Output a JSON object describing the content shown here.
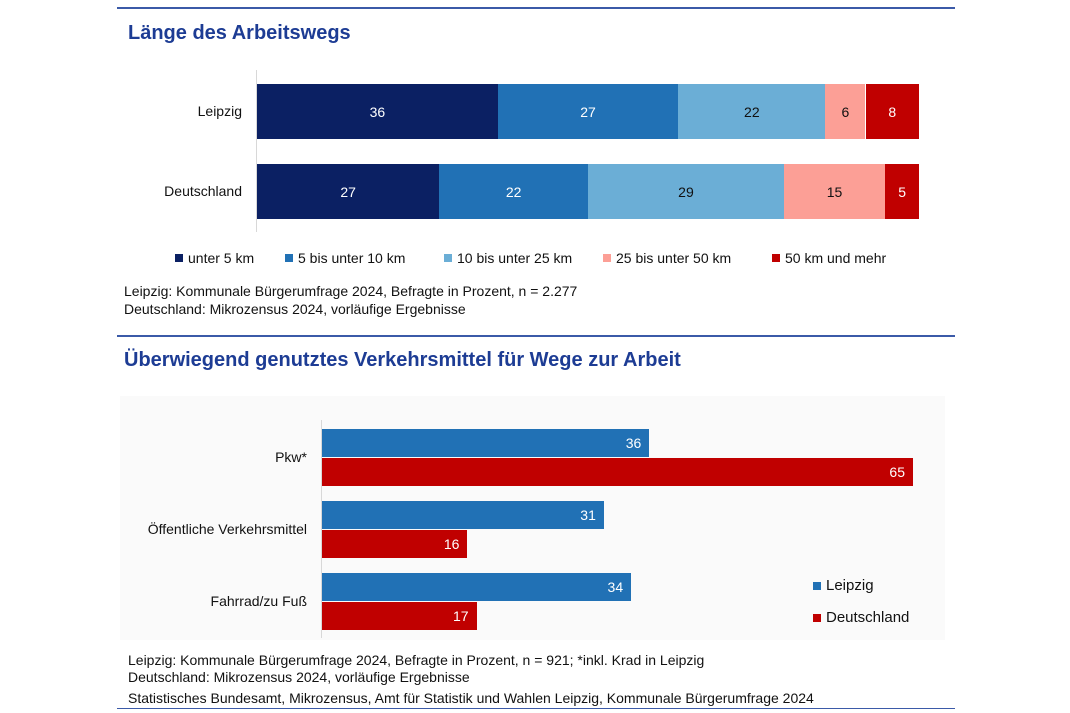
{
  "colors": {
    "title": "#1d3c94",
    "c1": "#0b2063",
    "c2": "#2171b5",
    "c3": "#6baed6",
    "c4": "#fc9f96",
    "c5": "#c00000"
  },
  "chart_data": [
    {
      "type": "bar",
      "orientation": "horizontal",
      "stacked": true,
      "title": "Länge des Arbeitswegs",
      "categories": [
        "Leipzig",
        "Deutschland"
      ],
      "series": [
        {
          "name": "unter 5 km",
          "color": "#0b2063",
          "values": [
            36,
            27
          ]
        },
        {
          "name": "5 bis unter 10 km",
          "color": "#2171b5",
          "values": [
            27,
            22
          ]
        },
        {
          "name": "10 bis unter 25 km",
          "color": "#6baed6",
          "values": [
            22,
            29
          ]
        },
        {
          "name": "25 bis unter 50 km",
          "color": "#fc9f96",
          "values": [
            6,
            15
          ]
        },
        {
          "name": "50 km und mehr",
          "color": "#c00000",
          "values": [
            8,
            5
          ]
        }
      ],
      "legend": "bottom",
      "notes": [
        "Leipzig: Kommunale Bürgerumfrage 2024, Befragte in Prozent, n = 2.277",
        "Deutschland: Mikrozensus 2024, vorläufige Ergebnisse"
      ]
    },
    {
      "type": "bar",
      "orientation": "horizontal",
      "title": "Überwiegend genutztes Verkehrsmittel für Wege zur Arbeit",
      "categories": [
        "Pkw*",
        "Öffentliche Verkehrsmittel",
        "Fahrrad/zu Fuß"
      ],
      "series": [
        {
          "name": "Leipzig",
          "color": "#2171b5",
          "values": [
            36,
            31,
            34
          ]
        },
        {
          "name": "Deutschland",
          "color": "#c00000",
          "values": [
            65,
            16,
            17
          ]
        }
      ],
      "legend": "right",
      "notes": [
        "Leipzig: Kommunale Bürgerumfrage 2024, Befragte in Prozent, n = 921; *inkl. Krad in Leipzig",
        "Deutschland: Mikrozensus 2024, vorläufige Ergebnisse",
        "Statistisches Bundesamt, Mikrozensus, Amt für Statistik und Wahlen Leipzig, Kommunale Bürgerumfrage 2024"
      ]
    }
  ]
}
